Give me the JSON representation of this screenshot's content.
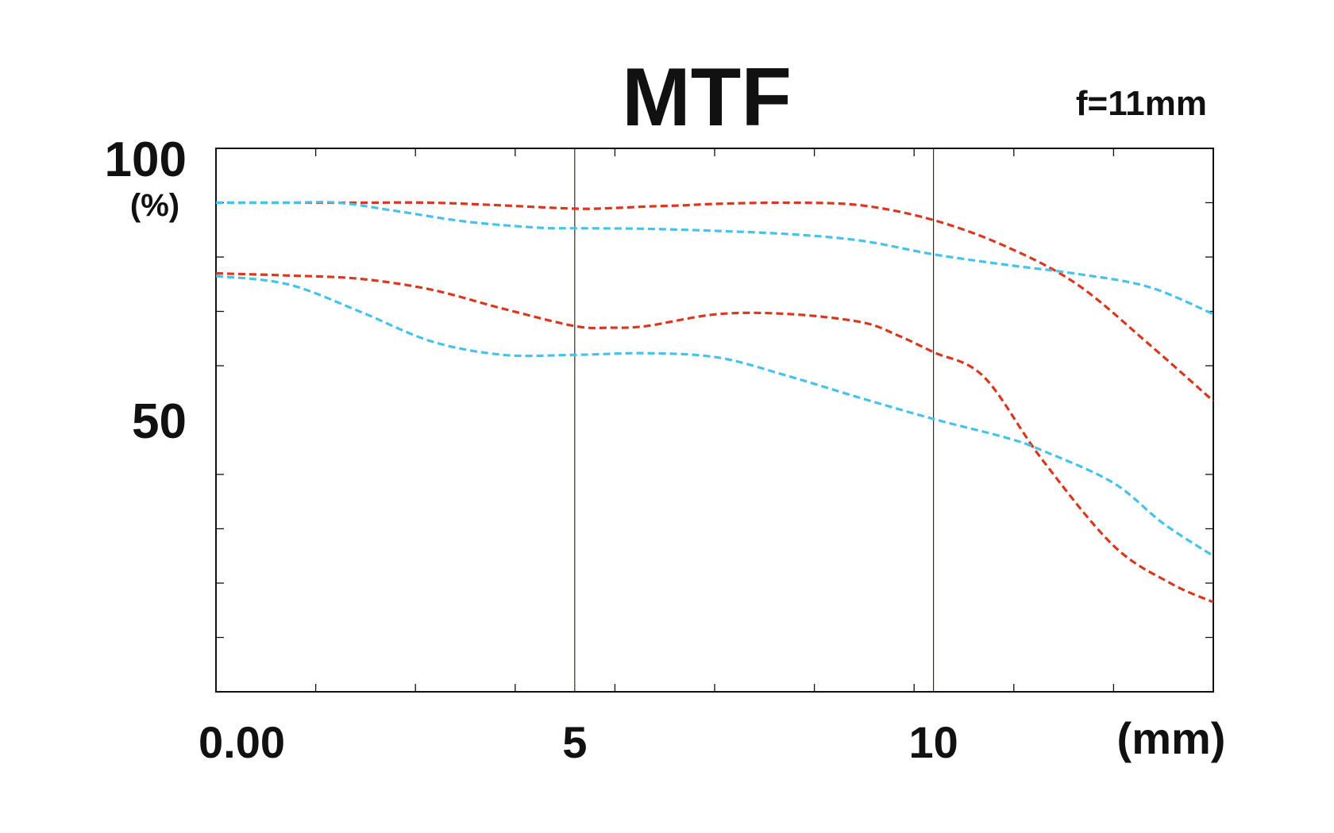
{
  "chart_data": {
    "type": "line",
    "title": "MTF",
    "subtitle": "f=11mm",
    "xlabel": "(mm)",
    "ylabel": "(%)",
    "xlim": [
      0,
      13.9
    ],
    "ylim": [
      0,
      100
    ],
    "x_ticks": [
      {
        "value": 0,
        "label": "0.00"
      },
      {
        "value": 5,
        "label": "5"
      },
      {
        "value": 10,
        "label": "10"
      }
    ],
    "y_ticks": [
      {
        "value": 100,
        "label": "100"
      },
      {
        "value": 50,
        "label": "50"
      }
    ],
    "x_minor_ticks": [
      1.39,
      2.78,
      4.17,
      5.56,
      6.95,
      8.34,
      9.73,
      11.12,
      12.51
    ],
    "y_minor_ticks": [
      10,
      20,
      30,
      40,
      60,
      70,
      80,
      90
    ],
    "vertical_reference_lines": [
      5,
      10
    ],
    "grid": false,
    "legend": "none",
    "colors": {
      "red": "#d9381e",
      "blue": "#45c3ea"
    },
    "series": [
      {
        "color": "red",
        "style": "dashed",
        "x": [
          0,
          1,
          2,
          3,
          4,
          5,
          5.5,
          6,
          6.5,
          7,
          8,
          9,
          10,
          11,
          12,
          13,
          13.9
        ],
        "y": [
          90,
          90,
          90,
          90,
          89.5,
          88.9,
          89,
          89.3,
          89.5,
          89.8,
          90,
          89.5,
          86.8,
          82,
          75,
          64,
          53.5
        ]
      },
      {
        "color": "blue",
        "style": "dashed",
        "x": [
          0,
          1,
          1.7,
          2.5,
          3.5,
          4.5,
          5,
          6,
          7,
          8,
          9,
          10,
          11,
          12,
          13,
          13.9
        ],
        "y": [
          90,
          90,
          90,
          88.5,
          86.5,
          85.4,
          85.3,
          85.2,
          84.8,
          84.2,
          83,
          80.5,
          78.6,
          76.9,
          74.5,
          69.5
        ]
      },
      {
        "color": "red",
        "style": "dashed",
        "x": [
          0,
          1,
          2,
          3,
          4,
          5,
          5.5,
          6,
          7,
          8,
          9,
          9.5,
          10,
          10.7,
          11.5,
          12.5,
          13.3,
          13.9
        ],
        "y": [
          77,
          76.6,
          76,
          74,
          70.5,
          67.3,
          67,
          67.3,
          69.5,
          69.5,
          68,
          65.6,
          62.5,
          58,
          43,
          27,
          20,
          16.5
        ]
      },
      {
        "color": "blue",
        "style": "dashed",
        "x": [
          0,
          1,
          2,
          3,
          4,
          5,
          6,
          7,
          8,
          9,
          10,
          11,
          11.5,
          12.5,
          13.2,
          13.9
        ],
        "y": [
          76.5,
          75,
          70,
          64.5,
          62,
          62,
          62.3,
          61.5,
          58,
          54,
          50.2,
          46.8,
          44.5,
          38.5,
          31,
          25
        ]
      }
    ]
  }
}
